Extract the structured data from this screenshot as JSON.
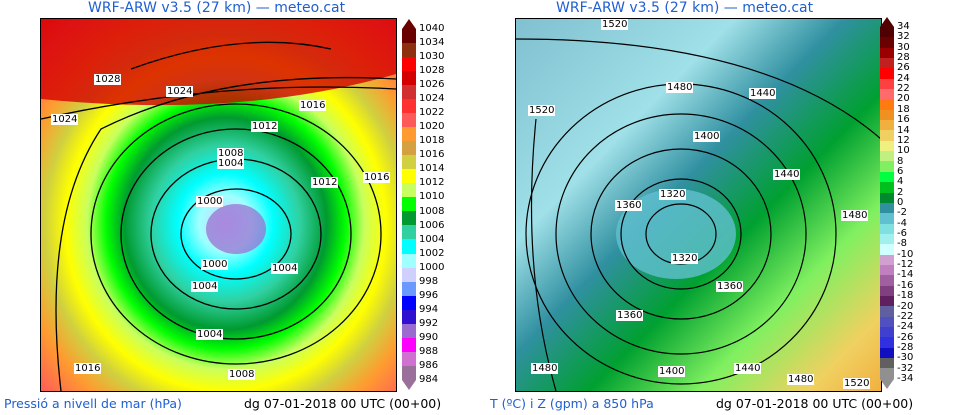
{
  "left": {
    "title": "WRF-ARW v3.5 (27 km) — meteo.cat",
    "variable": "Pressió a nivell de mar (hPa)",
    "date": "dg 07-01-2018 00 UTC (00+00)",
    "colorbar": {
      "labels": [
        "1040",
        "1034",
        "1030",
        "1028",
        "1026",
        "1024",
        "1022",
        "1020",
        "1018",
        "1016",
        "1014",
        "1012",
        "1010",
        "1008",
        "1006",
        "1004",
        "1002",
        "1000",
        "998",
        "996",
        "994",
        "992",
        "990",
        "988",
        "986",
        "984"
      ],
      "colors": [
        "#6a0000",
        "#8e3010",
        "#ff0000",
        "#d40000",
        "#d23030",
        "#ff3030",
        "#ff5a5a",
        "#ff9a30",
        "#d4a040",
        "#d0d040",
        "#ffff00",
        "#c8ff60",
        "#00ff00",
        "#009a30",
        "#30d0a0",
        "#00ffff",
        "#a0ffff",
        "#d0d0ff",
        "#6a9aff",
        "#0000ff",
        "#3010d0",
        "#9a6ad0",
        "#ff00ff",
        "#d070d0",
        "#9a709a"
      ]
    },
    "contour_labels": [
      "1028",
      "1024",
      "1024",
      "1016",
      "1012",
      "1008",
      "1004",
      "1012",
      "1016",
      "1000",
      "1000",
      "1004",
      "1004",
      "1004",
      "1008",
      "1016"
    ]
  },
  "right": {
    "title": "WRF-ARW v3.5 (27 km) — meteo.cat",
    "variable": "T (ºC) i Z (gpm) a 850 hPa",
    "date": "dg 07-01-2018 00 UTC (00+00)",
    "colorbar": {
      "labels": [
        "34",
        "32",
        "30",
        "28",
        "26",
        "24",
        "22",
        "20",
        "18",
        "16",
        "14",
        "12",
        "10",
        "8",
        "6",
        "4",
        "2",
        "0",
        "-2",
        "-4",
        "-6",
        "-8",
        "-10",
        "-12",
        "-14",
        "-16",
        "-18",
        "-20",
        "-22",
        "-24",
        "-26",
        "-28",
        "-30",
        "-32",
        "-34"
      ],
      "colors": [
        "#500000",
        "#6a0000",
        "#9a0000",
        "#c02020",
        "#ff0000",
        "#ff4040",
        "#ff6a6a",
        "#ff7a10",
        "#f09020",
        "#f0b040",
        "#f0d060",
        "#f0f080",
        "#c0f080",
        "#80f060",
        "#00ff40",
        "#00c020",
        "#008a30",
        "#3090a0",
        "#60c0d0",
        "#80e0e0",
        "#a0f0f0",
        "#d0ffff",
        "#d0a0d0",
        "#c080c0",
        "#a060a0",
        "#804080",
        "#602060",
        "#6060a0",
        "#5050c0",
        "#4040d0",
        "#3030e0",
        "#1010c0",
        "#606060",
        "#909090"
      ]
    },
    "contour_labels": [
      "1520",
      "1520",
      "1480",
      "1440",
      "1400",
      "1440",
      "1480",
      "1320",
      "1360",
      "1320",
      "1360",
      "1360",
      "1480",
      "1400",
      "1440",
      "1480",
      "1520"
    ]
  }
}
